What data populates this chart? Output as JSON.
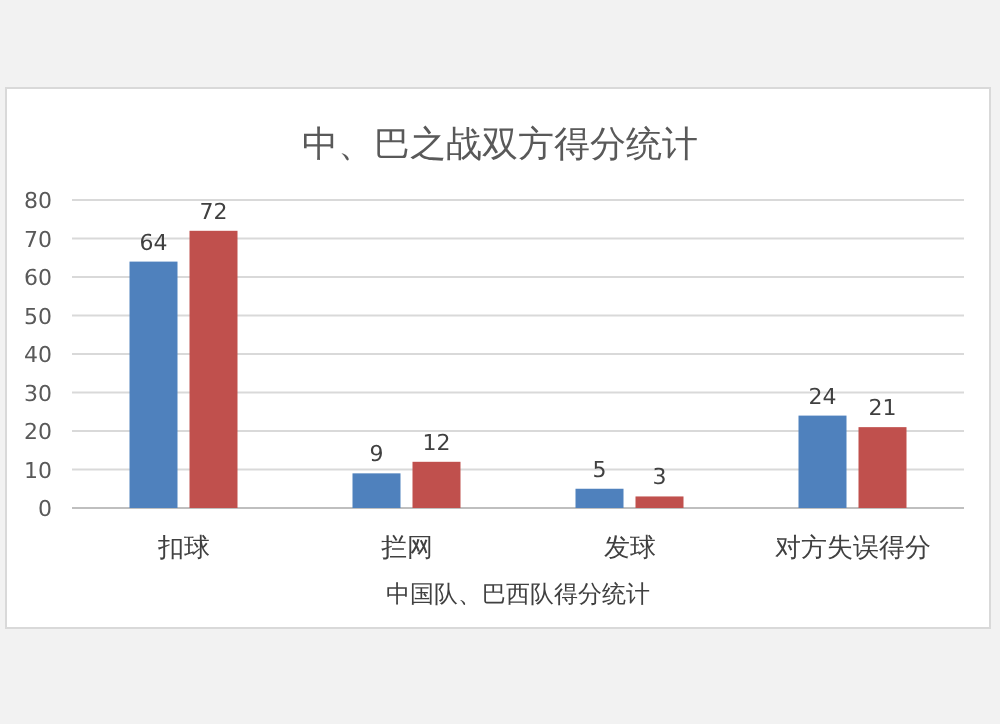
{
  "chart_data": {
    "type": "bar",
    "title": "中、巴之战双方得分统计",
    "xlabel": "中国队、巴西队得分统计",
    "categories": [
      "扣球",
      "拦网",
      "发球",
      "对方失误得分"
    ],
    "series": [
      {
        "color": "#4f81bd",
        "values": [
          64,
          9,
          5,
          24
        ]
      },
      {
        "color": "#c0504d",
        "values": [
          72,
          12,
          3,
          21
        ]
      }
    ],
    "ylim": [
      0,
      80
    ],
    "yticks": [
      0,
      10,
      20,
      30,
      40,
      50,
      60,
      70,
      80
    ],
    "grid": "y",
    "data_labels": true
  }
}
